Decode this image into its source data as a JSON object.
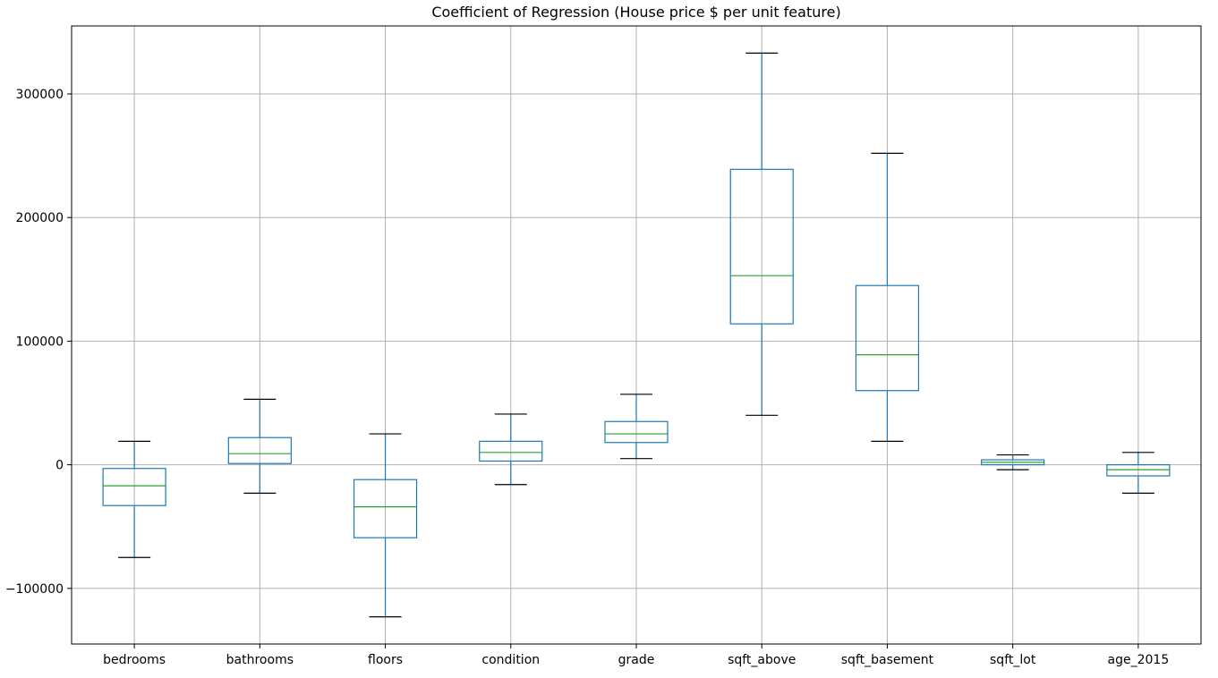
{
  "chart_data": {
    "type": "box",
    "title": "Coefficient of Regression (House price $ per unit feature)",
    "xlabel": "",
    "ylabel": "",
    "ylim": [
      -145000,
      355000
    ],
    "yticks": [
      -100000,
      0,
      100000,
      200000,
      300000
    ],
    "ytick_labels": [
      "−100000",
      "0",
      "100000",
      "200000",
      "300000"
    ],
    "grid": true,
    "colors": {
      "box": "#1f77b4",
      "median": "#2ca02c",
      "whisker": "#1f77b4",
      "cap": "#000000",
      "grid": "#b0b0b0"
    },
    "categories": [
      "bedrooms",
      "bathrooms",
      "floors",
      "condition",
      "grade",
      "sqft_above",
      "sqft_basement",
      "sqft_lot",
      "age_2015"
    ],
    "boxes": [
      {
        "label": "bedrooms",
        "whislo": -75000,
        "q1": -33000,
        "med": -17000,
        "q3": -3000,
        "whishi": 19000
      },
      {
        "label": "bathrooms",
        "whislo": -23000,
        "q1": 1000,
        "med": 9000,
        "q3": 22000,
        "whishi": 53000
      },
      {
        "label": "floors",
        "whislo": -123000,
        "q1": -59000,
        "med": -34000,
        "q3": -12000,
        "whishi": 25000
      },
      {
        "label": "condition",
        "whislo": -16000,
        "q1": 3000,
        "med": 10000,
        "q3": 19000,
        "whishi": 41000
      },
      {
        "label": "grade",
        "whislo": 5000,
        "q1": 18000,
        "med": 25000,
        "q3": 35000,
        "whishi": 57000
      },
      {
        "label": "sqft_above",
        "whislo": 40000,
        "q1": 114000,
        "med": 153000,
        "q3": 239000,
        "whishi": 333000
      },
      {
        "label": "sqft_basement",
        "whislo": 19000,
        "q1": 60000,
        "med": 89000,
        "q3": 145000,
        "whishi": 252000
      },
      {
        "label": "sqft_lot",
        "whislo": -4000,
        "q1": 0,
        "med": 2000,
        "q3": 4000,
        "whishi": 8000
      },
      {
        "label": "age_2015",
        "whislo": -23000,
        "q1": -9000,
        "med": -4000,
        "q3": 0,
        "whishi": 10000
      }
    ]
  }
}
